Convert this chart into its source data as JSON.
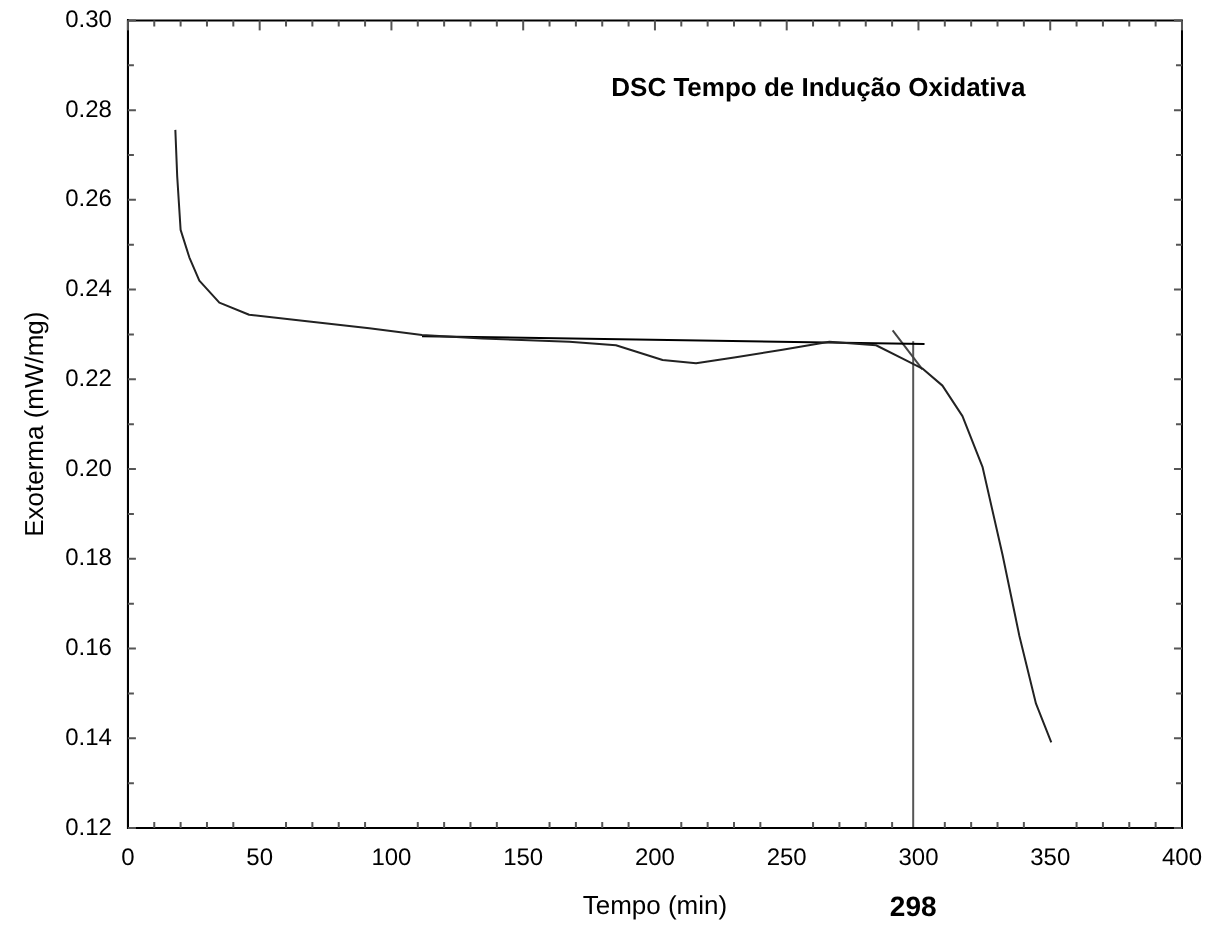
{
  "chart_data": {
    "type": "line",
    "title": "DSC Tempo de Indução Oxidativa",
    "xlabel": "Tempo (min)",
    "ylabel": "Exoterma (mW/mg)",
    "xlim": [
      0,
      400
    ],
    "xticks": [
      0,
      50,
      100,
      150,
      200,
      250,
      300,
      350,
      400
    ],
    "ylim": [
      0.12,
      0.3
    ],
    "yticks": [
      {
        "value": 0.12,
        "label": "0.12"
      },
      {
        "value": 0.14,
        "label": "0.14"
      },
      {
        "value": 0.16,
        "label": "0.16"
      },
      {
        "value": 0.18,
        "label": "0.18"
      },
      {
        "value": 0.2,
        "label": "0.20"
      },
      {
        "value": 0.22,
        "label": "0.22"
      },
      {
        "value": 0.24,
        "label": "0.24"
      },
      {
        "value": 0.26,
        "label": "0.26"
      },
      {
        "value": 0.28,
        "label": "0.28"
      },
      {
        "value": 0.3,
        "label": "0.30"
      }
    ],
    "grid": false,
    "legend": false,
    "marker": "none",
    "line_style": "solid",
    "series": [
      {
        "color": "#222222",
        "x": [
          18,
          18.7,
          20,
          23.3,
          27.1,
          34.7,
          46,
          68.8,
          91.6,
          111.6,
          134.4,
          167.5,
          185.2,
          202.9,
          215.6,
          230.7,
          248.4,
          266.2,
          283.9,
          294,
          301.5,
          309.1,
          316.7,
          324.3,
          331.9,
          338.3,
          344.6,
          350.4
        ],
        "values": [
          0.2756,
          0.2653,
          0.2533,
          0.2472,
          0.242,
          0.2371,
          0.2344,
          0.2329,
          0.2314,
          0.2299,
          0.2291,
          0.2284,
          0.2276,
          0.2243,
          0.2236,
          0.2249,
          0.2266,
          0.2284,
          0.2276,
          0.2246,
          0.2224,
          0.2186,
          0.2118,
          0.2005,
          0.1809,
          0.1628,
          0.1477,
          0.1391
        ]
      },
      {
        "color": "#000000",
        "x": [
          111.6,
          302.3
        ],
        "values": [
          0.2296,
          0.2279
        ]
      },
      {
        "color": "#444444",
        "x": [
          290.2,
          301.5
        ],
        "values": [
          0.2309,
          0.2222
        ]
      },
      {
        "color": "#555555",
        "x": [
          298,
          298
        ],
        "values": [
          0.12,
          0.2285
        ]
      }
    ],
    "annotations": [
      {
        "text": "298",
        "x": 298,
        "y": 0.12
      }
    ]
  }
}
